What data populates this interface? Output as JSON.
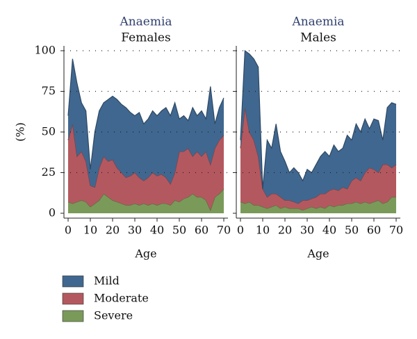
{
  "chart_data": [
    {
      "type": "stacked_area",
      "title": "Anaemia",
      "subtitle": "Females",
      "xlabel": "Age",
      "ylabel": "(%)",
      "x": [
        0,
        2,
        4,
        6,
        8,
        10,
        12,
        14,
        16,
        18,
        20,
        22,
        24,
        26,
        28,
        30,
        32,
        34,
        36,
        38,
        40,
        42,
        44,
        46,
        48,
        50,
        52,
        54,
        56,
        58,
        60,
        62,
        64,
        66,
        68,
        70
      ],
      "series": [
        {
          "name": "Severe",
          "color": "#7a9a5a",
          "values": [
            7,
            6,
            7,
            8,
            7,
            4,
            6,
            8,
            12,
            10,
            8,
            7,
            6,
            5,
            5,
            6,
            5,
            6,
            5,
            6,
            5,
            6,
            6,
            5,
            8,
            7,
            9,
            10,
            12,
            10,
            10,
            8,
            2,
            10,
            12,
            15
          ]
        },
        {
          "name": "Moderate",
          "color": "#b4585f",
          "values": [
            38,
            49,
            28,
            30,
            25,
            13,
            10,
            20,
            23,
            22,
            25,
            21,
            19,
            17,
            18,
            19,
            17,
            14,
            17,
            19,
            18,
            18,
            16,
            13,
            17,
            31,
            29,
            30,
            23,
            28,
            25,
            30,
            28,
            30,
            33,
            33
          ]
        },
        {
          "name": "Mild",
          "color": "#40678f",
          "values": [
            15,
            40,
            45,
            30,
            31,
            10,
            34,
            35,
            33,
            38,
            39,
            42,
            42,
            43,
            39,
            35,
            40,
            35,
            36,
            38,
            37,
            39,
            43,
            42,
            43,
            20,
            22,
            17,
            30,
            22,
            28,
            20,
            48,
            15,
            20,
            23
          ]
        }
      ],
      "xlim": [
        0,
        70
      ],
      "xticks": [
        0,
        10,
        20,
        30,
        40,
        50,
        60,
        70
      ],
      "ylim": [
        0,
        100
      ],
      "yticks": [
        0,
        25,
        50,
        75,
        100
      ],
      "grid": true
    },
    {
      "type": "stacked_area",
      "title": "Anaemia",
      "subtitle": "Males",
      "xlabel": "Age",
      "x": [
        0,
        2,
        4,
        6,
        8,
        10,
        12,
        14,
        16,
        18,
        20,
        22,
        24,
        26,
        28,
        30,
        32,
        34,
        36,
        38,
        40,
        42,
        44,
        46,
        48,
        50,
        52,
        54,
        56,
        58,
        60,
        62,
        64,
        66,
        68,
        70
      ],
      "series": [
        {
          "color": "#7a9a5a",
          "values": [
            7,
            6,
            7,
            5,
            5,
            4,
            3,
            4,
            5,
            3,
            4,
            3,
            3,
            3,
            2,
            3,
            4,
            3,
            4,
            3,
            5,
            4,
            5,
            5,
            6,
            6,
            7,
            6,
            7,
            6,
            7,
            8,
            6,
            7,
            10,
            10
          ]
        },
        {
          "color": "#b4585f",
          "values": [
            33,
            59,
            43,
            40,
            30,
            11,
            7,
            8,
            7,
            7,
            4,
            5,
            4,
            3,
            6,
            5,
            5,
            7,
            8,
            9,
            9,
            11,
            9,
            11,
            9,
            14,
            15,
            14,
            18,
            22,
            20,
            17,
            24,
            23,
            18,
            20
          ]
        },
        {
          "color": "#40678f",
          "values": [
            5,
            35,
            48,
            50,
            55,
            0,
            35,
            28,
            43,
            28,
            24,
            17,
            21,
            19,
            12,
            19,
            16,
            20,
            23,
            26,
            21,
            27,
            24,
            24,
            33,
            25,
            33,
            30,
            33,
            24,
            31,
            32,
            15,
            35,
            40,
            37
          ]
        }
      ],
      "xlim": [
        0,
        70
      ],
      "xticks": [
        0,
        10,
        20,
        30,
        40,
        50,
        60,
        70
      ],
      "ylim": [
        0,
        100
      ],
      "yticks": [
        0,
        25,
        50,
        75,
        100
      ],
      "grid": true
    }
  ]
}
